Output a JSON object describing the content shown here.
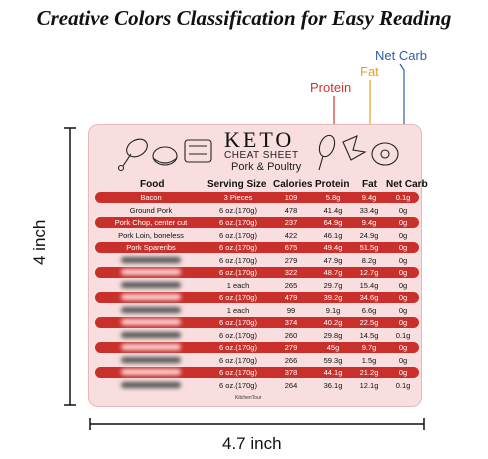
{
  "headline": "Creative Colors Classification for Easy Reading",
  "callouts": {
    "protein": "Protein",
    "fat": "Fat",
    "net_carb": "Net Carb"
  },
  "colors": {
    "protein": "#d6322f",
    "fat": "#e9a417",
    "net_carb": "#2f5fa8",
    "card": "#f8dede",
    "row_red": "#c9302c"
  },
  "card": {
    "title": "KETO",
    "subtitle": "CHEAT SHEET",
    "category": "Pork & Poultry",
    "brand": "KitchenTour",
    "headers": {
      "food": "Food",
      "serving": "Serving Size",
      "calories": "Calories",
      "protein": "Protein",
      "fat": "Fat",
      "net_carb": "Net Carb"
    },
    "rows": [
      {
        "food": "Bacon",
        "serving": "3 Pieces",
        "calories": "109",
        "protein": "5.8g",
        "fat": "9.4g",
        "net_carb": "0.1g",
        "red": true,
        "blurred": false
      },
      {
        "food": "Ground Pork",
        "serving": "6 oz.(170g)",
        "calories": "478",
        "protein": "41.4g",
        "fat": "33.4g",
        "net_carb": "0g",
        "red": false,
        "blurred": false
      },
      {
        "food": "Pork Chop, center cut",
        "serving": "6 oz.(170g)",
        "calories": "237",
        "protein": "64.9g",
        "fat": "9.4g",
        "net_carb": "0g",
        "red": true,
        "blurred": false
      },
      {
        "food": "Pork Loin, boneless",
        "serving": "6 oz.(170g)",
        "calories": "422",
        "protein": "46.1g",
        "fat": "24.9g",
        "net_carb": "0g",
        "red": false,
        "blurred": false
      },
      {
        "food": "Pork Spareribs",
        "serving": "6 oz.(170g)",
        "calories": "675",
        "protein": "49.4g",
        "fat": "51.5g",
        "net_carb": "0g",
        "red": true,
        "blurred": false
      },
      {
        "food": "",
        "serving": "6 oz.(170g)",
        "calories": "279",
        "protein": "47.9g",
        "fat": "8.2g",
        "net_carb": "0g",
        "red": false,
        "blurred": true
      },
      {
        "food": "",
        "serving": "6 oz.(170g)",
        "calories": "322",
        "protein": "48.7g",
        "fat": "12.7g",
        "net_carb": "0g",
        "red": true,
        "blurred": true
      },
      {
        "food": "",
        "serving": "1 each",
        "calories": "265",
        "protein": "29.7g",
        "fat": "15.4g",
        "net_carb": "0g",
        "red": false,
        "blurred": true
      },
      {
        "food": "",
        "serving": "6 oz.(170g)",
        "calories": "479",
        "protein": "39.2g",
        "fat": "34.6g",
        "net_carb": "0g",
        "red": true,
        "blurred": true
      },
      {
        "food": "",
        "serving": "1 each",
        "calories": "99",
        "protein": "9.1g",
        "fat": "6.6g",
        "net_carb": "0g",
        "red": false,
        "blurred": true
      },
      {
        "food": "",
        "serving": "6 oz.(170g)",
        "calories": "374",
        "protein": "40.2g",
        "fat": "22.5g",
        "net_carb": "0g",
        "red": true,
        "blurred": true
      },
      {
        "food": "",
        "serving": "6 oz.(170g)",
        "calories": "260",
        "protein": "29.8g",
        "fat": "14.5g",
        "net_carb": "0.1g",
        "red": false,
        "blurred": true
      },
      {
        "food": "",
        "serving": "6 oz.(170g)",
        "calories": "279",
        "protein": "45g",
        "fat": "9.7g",
        "net_carb": "0g",
        "red": true,
        "blurred": true
      },
      {
        "food": "",
        "serving": "6 oz.(170g)",
        "calories": "266",
        "protein": "59.3g",
        "fat": "1.5g",
        "net_carb": "0g",
        "red": false,
        "blurred": true
      },
      {
        "food": "",
        "serving": "6 oz.(170g)",
        "calories": "378",
        "protein": "44.1g",
        "fat": "21.2g",
        "net_carb": "0g",
        "red": true,
        "blurred": true
      },
      {
        "food": "",
        "serving": "6 oz.(170g)",
        "calories": "264",
        "protein": "36.1g",
        "fat": "12.1g",
        "net_carb": "0.1g",
        "red": false,
        "blurred": true
      }
    ]
  },
  "dimensions": {
    "width": "4.7 inch",
    "height": "4 inch"
  }
}
